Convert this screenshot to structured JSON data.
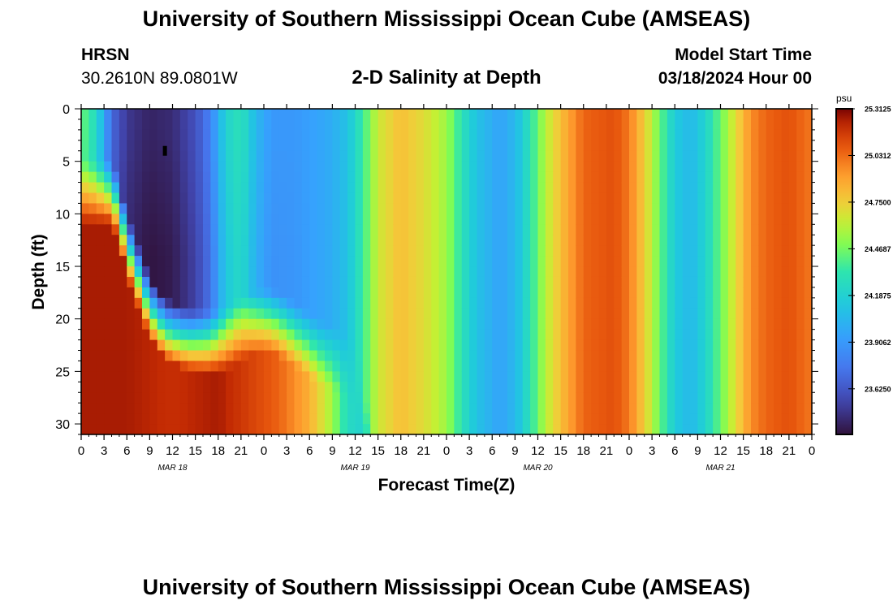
{
  "page": {
    "title_top": "University of Southern Mississippi Ocean Cube (AMSEAS)",
    "title_bottom": "University of Southern Mississippi Ocean Cube (AMSEAS)",
    "station": "HRSN",
    "coordinates": "30.2610N  89.0801W",
    "start_label": "Model Start Time",
    "start_value": "03/18/2024 Hour 00"
  },
  "chart_data": {
    "type": "heatmap",
    "title": "2-D Salinity at Depth",
    "xlabel": "Forecast Time(Z)",
    "ylabel": "Depth (ft)",
    "x_range_hours": [
      0,
      96
    ],
    "x_step_hours": 1,
    "ylim": [
      0,
      31
    ],
    "y_step_ft": 1,
    "y_ticks": [
      0,
      5,
      10,
      15,
      20,
      25,
      30
    ],
    "x_tick_labels": [
      "0",
      "3",
      "6",
      "9",
      "12",
      "15",
      "18",
      "21",
      "0",
      "3",
      "6",
      "9",
      "12",
      "15",
      "18",
      "21",
      "0",
      "3",
      "6",
      "9",
      "12",
      "15",
      "18",
      "21",
      "0",
      "3",
      "6",
      "9",
      "12",
      "15",
      "18",
      "21",
      "0"
    ],
    "date_labels": [
      {
        "label": "MAR 18",
        "hour": 12
      },
      {
        "label": "MAR 19",
        "hour": 36
      },
      {
        "label": "MAR 20",
        "hour": 60
      },
      {
        "label": "MAR 21",
        "hour": 84
      }
    ],
    "colorbar": {
      "unit": "psu",
      "min": 23.35,
      "max": 25.3125,
      "tick_values": [
        25.3125,
        25.0312,
        24.75,
        24.4687,
        24.1875,
        23.9062,
        23.625
      ],
      "tick_labels": [
        "25.3125",
        "25.0312",
        "24.7500",
        "24.4687",
        "24.1875",
        "23.9062",
        "23.6250"
      ]
    },
    "marker": {
      "hour": 11,
      "depth_ft": 4
    },
    "surface_salinity_psu": [
      [
        0,
        24.45
      ],
      [
        2,
        24.25
      ],
      [
        4,
        23.7
      ],
      [
        6,
        23.5
      ],
      [
        9,
        23.42
      ],
      [
        12,
        23.45
      ],
      [
        15,
        23.6
      ],
      [
        17,
        23.8
      ],
      [
        19,
        24.2
      ],
      [
        21,
        24.3
      ],
      [
        23,
        24.05
      ],
      [
        25,
        23.9
      ],
      [
        28,
        23.9
      ],
      [
        31,
        23.95
      ],
      [
        33,
        24.0
      ],
      [
        35,
        24.1
      ],
      [
        37,
        24.35
      ],
      [
        39,
        24.65
      ],
      [
        42,
        24.8
      ],
      [
        45,
        24.7
      ],
      [
        48,
        24.55
      ],
      [
        50,
        24.3
      ],
      [
        52,
        24.1
      ],
      [
        55,
        23.95
      ],
      [
        57,
        24.05
      ],
      [
        59,
        24.3
      ],
      [
        61,
        24.6
      ],
      [
        63,
        24.8
      ],
      [
        66,
        25.05
      ],
      [
        70,
        25.1
      ],
      [
        72,
        25.0
      ],
      [
        74,
        24.75
      ],
      [
        76,
        24.45
      ],
      [
        78,
        24.15
      ],
      [
        80,
        24.05
      ],
      [
        82,
        24.2
      ],
      [
        84,
        24.45
      ],
      [
        86,
        24.7
      ],
      [
        88,
        24.95
      ],
      [
        90,
        25.05
      ],
      [
        93,
        25.1
      ],
      [
        96,
        25.0
      ]
    ],
    "bottom_layer_salinity_psu": [
      [
        0,
        25.25
      ],
      [
        6,
        25.25
      ],
      [
        12,
        25.2
      ],
      [
        18,
        25.25
      ],
      [
        22,
        25.15
      ],
      [
        26,
        25.05
      ],
      [
        30,
        24.85
      ],
      [
        33,
        24.55
      ],
      [
        35,
        24.25
      ],
      [
        37,
        24.2
      ]
    ],
    "bottom_layer_top_depth_ft": [
      [
        0,
        8
      ],
      [
        4,
        8
      ],
      [
        5,
        10
      ],
      [
        6,
        13
      ],
      [
        7,
        15
      ],
      [
        9,
        19
      ],
      [
        11,
        21
      ],
      [
        14,
        22
      ],
      [
        17,
        22.3
      ],
      [
        19,
        22
      ],
      [
        21,
        21
      ],
      [
        23,
        20.3
      ],
      [
        25,
        20.2
      ],
      [
        27,
        21
      ],
      [
        29,
        22
      ],
      [
        31,
        23
      ],
      [
        34,
        24
      ],
      [
        36,
        25.5
      ],
      [
        37,
        28
      ],
      [
        37.5,
        31
      ]
    ]
  }
}
